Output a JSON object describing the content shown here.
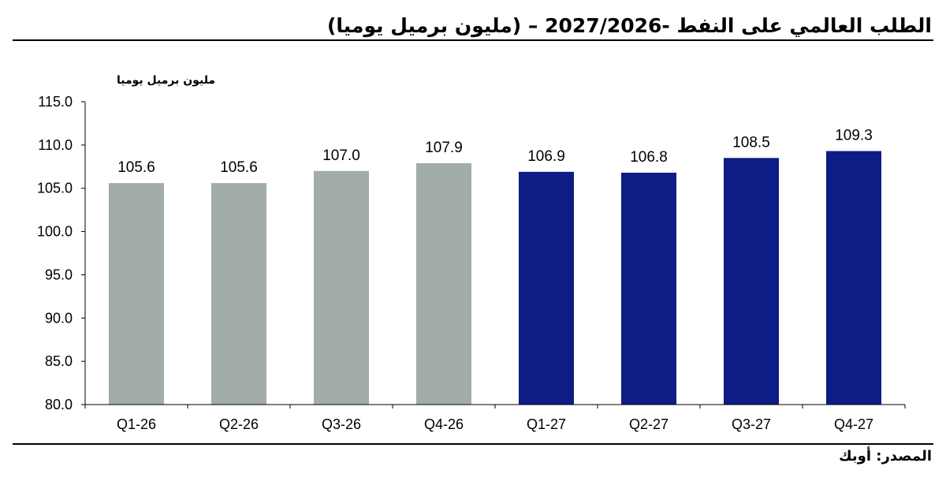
{
  "header": {
    "title": "الطلب العالمي على النفط -2027/2026 – (مليون برميل يوميا)"
  },
  "footer": {
    "source": "المصدر: أوبك"
  },
  "chart_data": {
    "type": "bar",
    "title": "الطلب العالمي على النفط -2027/2026 – (مليون برميل يوميا)",
    "ylabel": "مليون برميل يوميا",
    "xlabel": "",
    "categories": [
      "Q1-26",
      "Q2-26",
      "Q3-26",
      "Q4-26",
      "Q1-27",
      "Q2-27",
      "Q3-27",
      "Q4-27"
    ],
    "values": [
      105.6,
      105.6,
      107.0,
      107.9,
      106.9,
      106.8,
      108.5,
      109.3
    ],
    "value_labels": [
      "105.6",
      "105.6",
      "107.0",
      "107.9",
      "106.9",
      "106.8",
      "108.5",
      "109.3"
    ],
    "ylim": [
      80,
      115
    ],
    "yticks": [
      "80.0",
      "85.0",
      "90.0",
      "95.0",
      "100.0",
      "105.0",
      "110.0",
      "115.0"
    ],
    "bar_colors": [
      "#A2ADAB",
      "#A2ADAB",
      "#A2ADAB",
      "#A2ADAB",
      "#0E1C85",
      "#0E1C85",
      "#0E1C85",
      "#0E1C85"
    ],
    "grid": false,
    "legend": "none"
  }
}
